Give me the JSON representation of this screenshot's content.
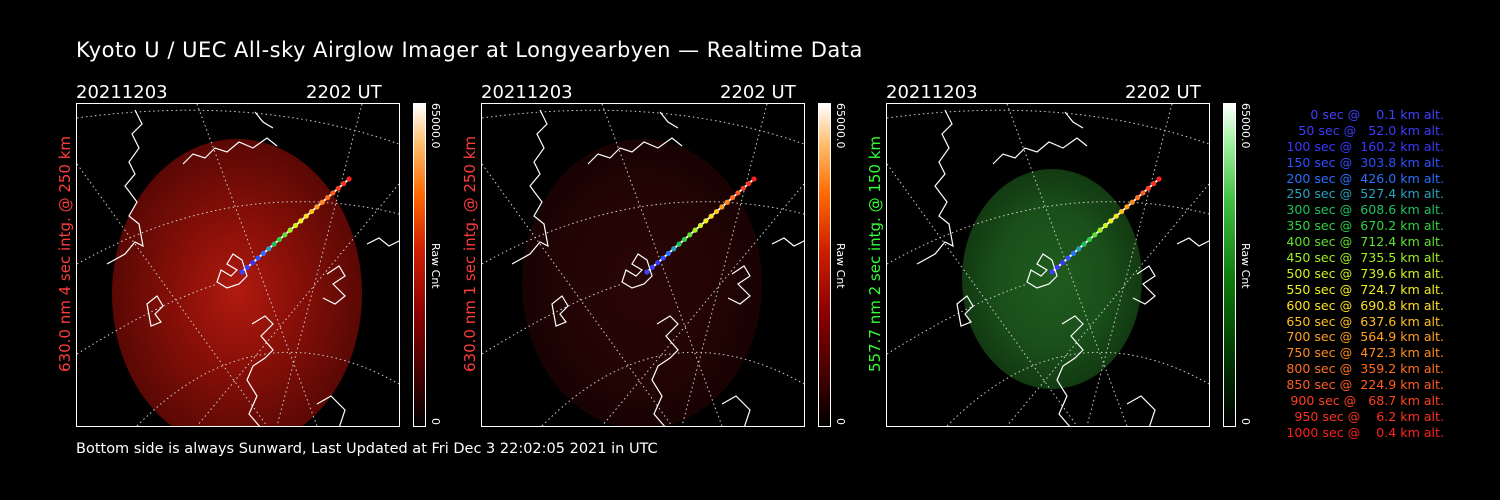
{
  "title": "Kyoto U / UEC All-sky Airglow Imager at Longyearbyen — Realtime Data",
  "panels": [
    {
      "date": "20211203",
      "time": "2202 UT",
      "ylabel": "630.0 nm 4 sec intg. @ 250 km",
      "ylabel_color": "#ff3b3b",
      "cbar_max": "65000.0",
      "cbar_min": "0",
      "cbar_label": "Raw Cnt",
      "emission": "red",
      "intensity": "bright"
    },
    {
      "date": "20211203",
      "time": "2202 UT",
      "ylabel": "630.0 nm 1 sec intg. @ 250 km",
      "ylabel_color": "#ff3b3b",
      "cbar_max": "65000.0",
      "cbar_min": "0",
      "cbar_label": "Raw Cnt",
      "emission": "red",
      "intensity": "dim"
    },
    {
      "date": "20211203",
      "time": "2202 UT",
      "ylabel": "557.7 nm 2 sec intg. @ 150 km",
      "ylabel_color": "#33ff33",
      "cbar_max": "65000.0",
      "cbar_min": "0",
      "cbar_label": "Raw Cnt",
      "emission": "green",
      "intensity": "medium"
    }
  ],
  "footer": "Bottom side is always Sunward, Last Updated at Fri Dec  3 22:02:05 2021 in UTC",
  "trajectory_legend": [
    {
      "text": "   0 sec @    0.1 km alt.",
      "color": "#4040ff"
    },
    {
      "text": "  50 sec @   52.0 km alt.",
      "color": "#3c3cff"
    },
    {
      "text": " 100 sec @  160.2 km alt.",
      "color": "#3838ff"
    },
    {
      "text": " 150 sec @  303.8 km alt.",
      "color": "#3050ff"
    },
    {
      "text": " 200 sec @  426.0 km alt.",
      "color": "#2a70ff"
    },
    {
      "text": " 250 sec @  527.4 km alt.",
      "color": "#2aa0c0"
    },
    {
      "text": " 300 sec @  608.6 km alt.",
      "color": "#20c060"
    },
    {
      "text": " 350 sec @  670.2 km alt.",
      "color": "#30d040"
    },
    {
      "text": " 400 sec @  712.4 km alt.",
      "color": "#60e030"
    },
    {
      "text": " 450 sec @  735.5 km alt.",
      "color": "#a0f020"
    },
    {
      "text": " 500 sec @  739.6 km alt.",
      "color": "#d0f020"
    },
    {
      "text": " 550 sec @  724.7 km alt.",
      "color": "#f0f020"
    },
    {
      "text": " 600 sec @  690.8 km alt.",
      "color": "#ffe020"
    },
    {
      "text": " 650 sec @  637.6 km alt.",
      "color": "#ffc020"
    },
    {
      "text": " 700 sec @  564.9 km alt.",
      "color": "#ffa020"
    },
    {
      "text": " 750 sec @  472.3 km alt.",
      "color": "#ff8a20"
    },
    {
      "text": " 800 sec @  359.2 km alt.",
      "color": "#ff7020"
    },
    {
      "text": " 850 sec @  224.9 km alt.",
      "color": "#ff5a20"
    },
    {
      "text": " 900 sec @   68.7 km alt.",
      "color": "#ff4020"
    },
    {
      "text": " 950 sec @    6.2 km alt.",
      "color": "#ff3020"
    },
    {
      "text": "1000 sec @    0.4 km alt.",
      "color": "#ff2020"
    }
  ]
}
